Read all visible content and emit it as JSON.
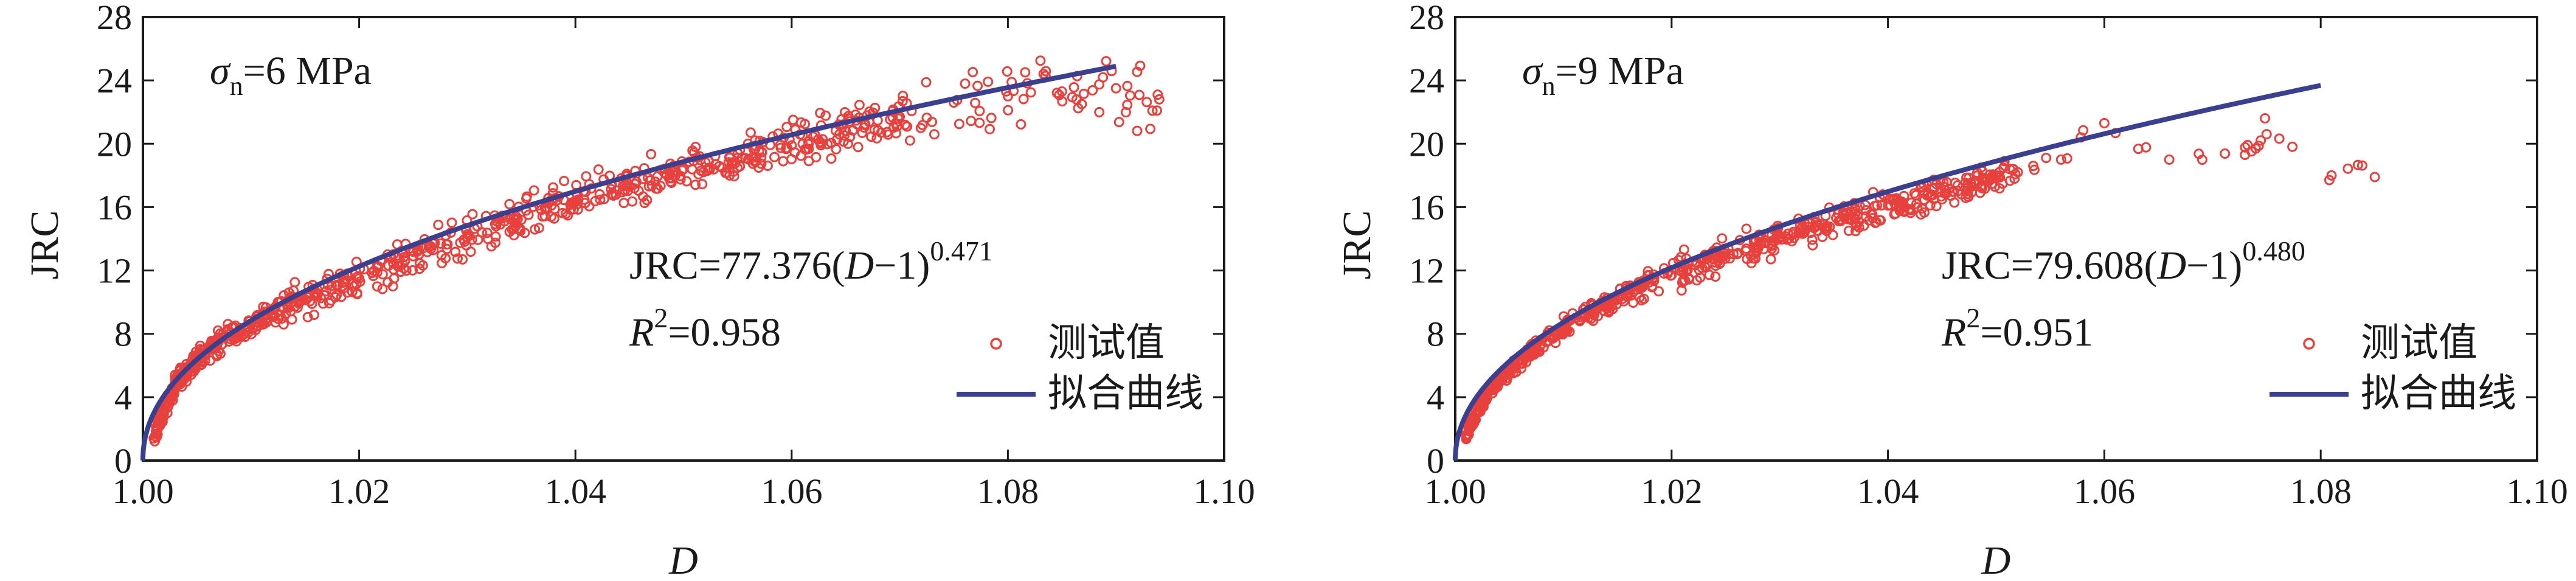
{
  "chart_data": [
    {
      "type": "scatter",
      "panel": "left",
      "xlabel": "D",
      "ylabel": "JRC",
      "xlim": [
        1.0,
        1.1
      ],
      "ylim": [
        0,
        28
      ],
      "xticks": [
        "1.00",
        "1.02",
        "1.04",
        "1.06",
        "1.08",
        "1.10"
      ],
      "yticks": [
        "0",
        "4",
        "8",
        "12",
        "16",
        "20",
        "24",
        "28"
      ],
      "condition": {
        "symbol": "σ",
        "subscript": "n",
        "value": "=6 MPa"
      },
      "equation": {
        "lhs": "JRC=77.376(",
        "var": "D",
        "rhs": "−1)",
        "exponent": "0.471"
      },
      "r2": {
        "symbol": "R",
        "superscript": "2",
        "value": "=0.958"
      },
      "fit": {
        "a": 77.376,
        "b": 0.471,
        "x_max": 1.09
      },
      "series": [
        {
          "name": "测试值",
          "marker": "open-circle",
          "color": "#e8403c",
          "points": [
            [
              1.001,
              1.4
            ],
            [
              1.002,
              3.2
            ],
            [
              1.003,
              4.8
            ],
            [
              1.004,
              5.6
            ],
            [
              1.005,
              6.4
            ],
            [
              1.007,
              7.5
            ],
            [
              1.01,
              8.6
            ],
            [
              1.013,
              9.6
            ],
            [
              1.016,
              10.6
            ],
            [
              1.02,
              11.5
            ],
            [
              1.025,
              12.9
            ],
            [
              1.03,
              14.1
            ],
            [
              1.035,
              15.2
            ],
            [
              1.04,
              16.4
            ],
            [
              1.045,
              17.3
            ],
            [
              1.05,
              18.4
            ],
            [
              1.055,
              19.1
            ],
            [
              1.06,
              19.9
            ],
            [
              1.065,
              20.8
            ],
            [
              1.07,
              21.7
            ],
            [
              1.075,
              22.6
            ],
            [
              1.08,
              23.0
            ],
            [
              1.085,
              23.3
            ],
            [
              1.09,
              23.5
            ],
            [
              1.094,
              22.8
            ]
          ]
        },
        {
          "name": "拟合曲线",
          "marker": "line",
          "color": "#3a3f8f"
        }
      ],
      "legend_position": "bottom-right"
    },
    {
      "type": "scatter",
      "panel": "right",
      "xlabel": "D",
      "ylabel": "JRC",
      "xlim": [
        1.0,
        1.1
      ],
      "ylim": [
        0,
        28
      ],
      "xticks": [
        "1.00",
        "1.02",
        "1.04",
        "1.06",
        "1.08",
        "1.10"
      ],
      "yticks": [
        "0",
        "4",
        "8",
        "12",
        "16",
        "20",
        "24",
        "28"
      ],
      "condition": {
        "symbol": "σ",
        "subscript": "n",
        "value": "=9 MPa"
      },
      "equation": {
        "lhs": "JRC=79.608(",
        "var": "D",
        "rhs": "−1)",
        "exponent": "0.480"
      },
      "r2": {
        "symbol": "R",
        "superscript": "2",
        "value": "=0.951"
      },
      "fit": {
        "a": 79.608,
        "b": 0.48,
        "x_max": 1.08
      },
      "series": [
        {
          "name": "测试值",
          "marker": "open-circle",
          "color": "#e8403c",
          "points": [
            [
              1.001,
              1.6
            ],
            [
              1.002,
              3.0
            ],
            [
              1.003,
              4.3
            ],
            [
              1.005,
              5.6
            ],
            [
              1.007,
              6.9
            ],
            [
              1.01,
              8.4
            ],
            [
              1.013,
              9.6
            ],
            [
              1.016,
              10.6
            ],
            [
              1.02,
              11.7
            ],
            [
              1.024,
              12.7
            ],
            [
              1.028,
              13.6
            ],
            [
              1.032,
              14.5
            ],
            [
              1.036,
              15.3
            ],
            [
              1.04,
              16.1
            ],
            [
              1.044,
              16.8
            ],
            [
              1.048,
              17.5
            ],
            [
              1.052,
              18.2
            ],
            [
              1.056,
              19.0
            ],
            [
              1.06,
              21.3
            ],
            [
              1.066,
              19.0
            ],
            [
              1.073,
              19.3
            ],
            [
              1.074,
              19.7
            ],
            [
              1.075,
              20.6
            ],
            [
              1.081,
              18.0
            ],
            [
              1.085,
              17.9
            ]
          ]
        },
        {
          "name": "拟合曲线",
          "marker": "line",
          "color": "#3a3f8f"
        }
      ],
      "legend_position": "bottom-right"
    }
  ]
}
